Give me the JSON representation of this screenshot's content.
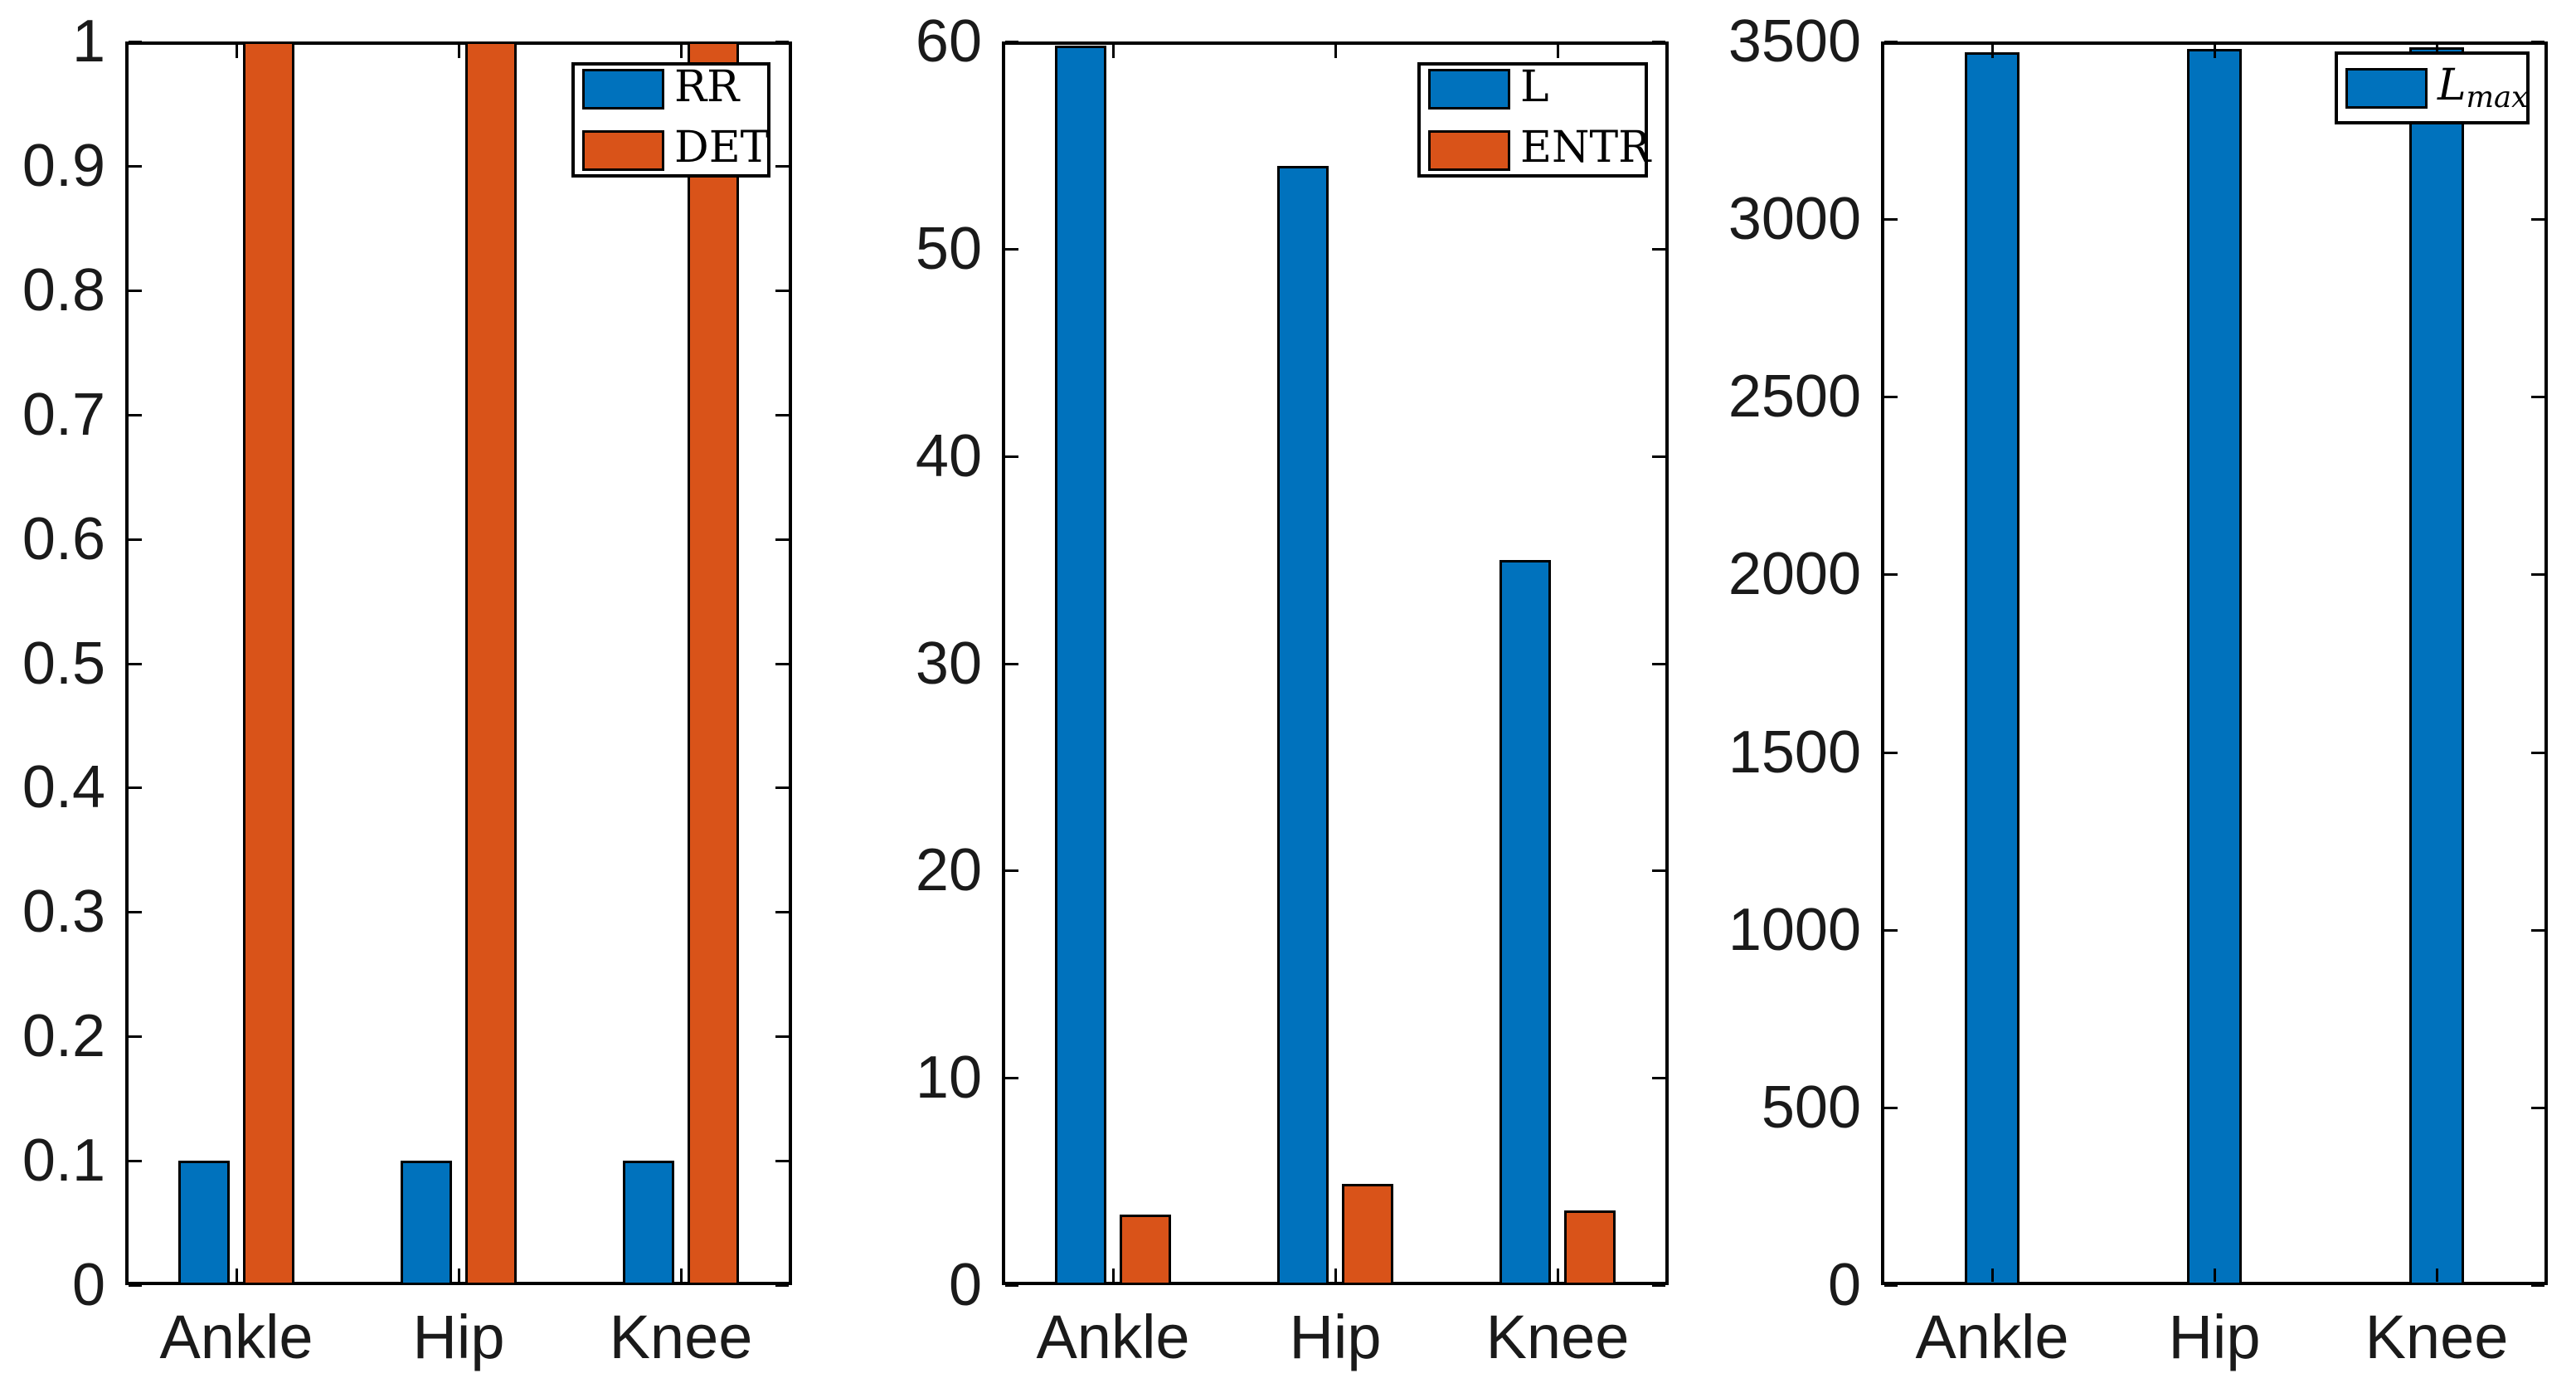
{
  "figure": {
    "background": "#ffffff",
    "axis_color": "#000000",
    "tick_label_color": "#1a1a1a",
    "series_palette": {
      "blue": "#0072BD",
      "orange": "#D95319"
    }
  },
  "chart_data": [
    {
      "type": "bar",
      "title": "",
      "xlabel": "",
      "ylabel": "",
      "categories": [
        "Ankle",
        "Hip",
        "Knee"
      ],
      "series": [
        {
          "name": "RR",
          "color": "#0072BD",
          "values": [
            0.1,
            0.1,
            0.1
          ]
        },
        {
          "name": "DET",
          "color": "#D95319",
          "values": [
            1.0,
            1.0,
            1.0
          ]
        }
      ],
      "ylim": [
        0,
        1
      ],
      "grid": false,
      "yticks": [
        {
          "value": 0,
          "label": "0"
        },
        {
          "value": 0.1,
          "label": "0.1"
        },
        {
          "value": 0.2,
          "label": "0.2"
        },
        {
          "value": 0.3,
          "label": "0.3"
        },
        {
          "value": 0.4,
          "label": "0.4"
        },
        {
          "value": 0.5,
          "label": "0.5"
        },
        {
          "value": 0.6,
          "label": "0.6"
        },
        {
          "value": 0.7,
          "label": "0.7"
        },
        {
          "value": 0.8,
          "label": "0.8"
        },
        {
          "value": 0.9,
          "label": "0.9"
        },
        {
          "value": 1,
          "label": "1"
        }
      ],
      "legend": {
        "position": "northeast",
        "entries": [
          {
            "text": "RR",
            "sub": ""
          },
          {
            "text": "DET",
            "sub": ""
          }
        ]
      }
    },
    {
      "type": "bar",
      "title": "",
      "xlabel": "",
      "ylabel": "",
      "categories": [
        "Ankle",
        "Hip",
        "Knee"
      ],
      "series": [
        {
          "name": "L",
          "color": "#0072BD",
          "values": [
            59.8,
            54,
            35
          ]
        },
        {
          "name": "ENTR",
          "color": "#D95319",
          "values": [
            3.4,
            4.9,
            3.6
          ]
        }
      ],
      "ylim": [
        0,
        60
      ],
      "grid": false,
      "yticks": [
        {
          "value": 0,
          "label": "0"
        },
        {
          "value": 10,
          "label": "10"
        },
        {
          "value": 20,
          "label": "20"
        },
        {
          "value": 30,
          "label": "30"
        },
        {
          "value": 40,
          "label": "40"
        },
        {
          "value": 50,
          "label": "50"
        },
        {
          "value": 60,
          "label": "60"
        }
      ],
      "legend": {
        "position": "northeast",
        "entries": [
          {
            "text": "L",
            "sub": ""
          },
          {
            "text": "ENTR",
            "sub": ""
          }
        ]
      }
    },
    {
      "type": "bar",
      "title": "",
      "xlabel": "",
      "ylabel": "",
      "categories": [
        "Ankle",
        "Hip",
        "Knee"
      ],
      "series": [
        {
          "name": "L_max",
          "color": "#0072BD",
          "values": [
            3470,
            3480,
            3483
          ]
        }
      ],
      "ylim": [
        0,
        3500
      ],
      "grid": false,
      "yticks": [
        {
          "value": 0,
          "label": "0"
        },
        {
          "value": 500,
          "label": "500"
        },
        {
          "value": 1000,
          "label": "1000"
        },
        {
          "value": 1500,
          "label": "1500"
        },
        {
          "value": 2000,
          "label": "2000"
        },
        {
          "value": 2500,
          "label": "2500"
        },
        {
          "value": 3000,
          "label": "3000"
        },
        {
          "value": 3500,
          "label": "3500"
        }
      ],
      "legend": {
        "position": "northeast",
        "entries": [
          {
            "text": "L",
            "sub": "max"
          }
        ]
      }
    }
  ]
}
